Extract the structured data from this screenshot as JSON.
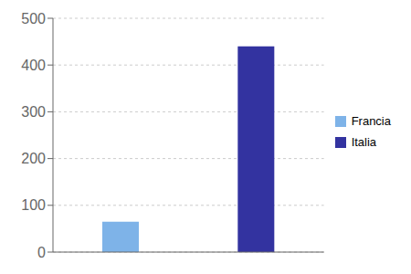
{
  "chart_data": {
    "type": "bar",
    "categories": [
      "Francia",
      "Italia"
    ],
    "values": [
      65,
      440
    ],
    "colors": [
      "#7eb3e8",
      "#3333a0"
    ],
    "ylim": [
      0,
      500
    ],
    "yticks": [
      0,
      100,
      200,
      300,
      400,
      500
    ],
    "grid": true,
    "legend": "right",
    "tick_labels": "y"
  }
}
